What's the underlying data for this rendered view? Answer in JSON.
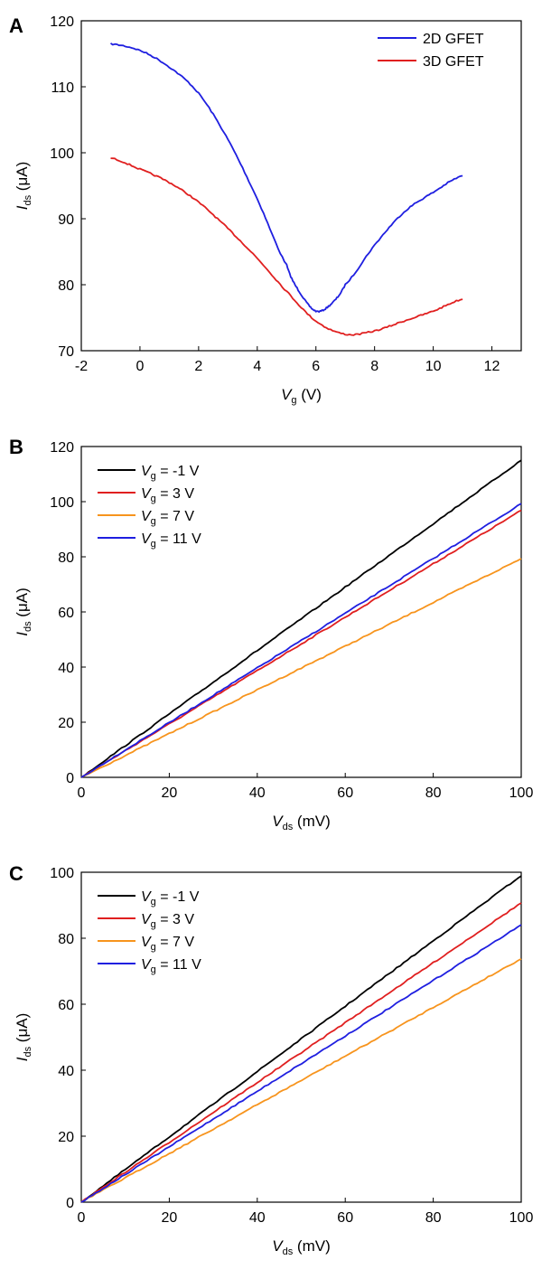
{
  "chart_data": [
    {
      "panel": "A",
      "type": "line",
      "xlabel": {
        "main": "V",
        "sub": "g",
        "rest": " (V)"
      },
      "ylabel": {
        "main": "I",
        "sub": "ds",
        "rest": " (μA)"
      },
      "xlim": [
        -2,
        13
      ],
      "ylim": [
        70,
        120
      ],
      "xticks": [
        -2,
        0,
        2,
        4,
        6,
        8,
        10,
        12
      ],
      "yticks": [
        70,
        80,
        90,
        100,
        110,
        120
      ],
      "legend_position": "top-right",
      "series": [
        {
          "name": "2D GFET",
          "color": "#1f1fe0",
          "x": [
            -1,
            0,
            1,
            2,
            3,
            4,
            5,
            5.5,
            6,
            6.5,
            7,
            8,
            9,
            10,
            11
          ],
          "y": [
            116.5,
            115.5,
            113,
            109,
            102,
            93,
            83,
            78.5,
            76,
            77,
            80,
            86,
            91,
            94,
            96.5
          ]
        },
        {
          "name": "3D GFET",
          "color": "#e01f1f",
          "x": [
            -1,
            0,
            1,
            2,
            3,
            4,
            5,
            6,
            7,
            8,
            9,
            10,
            11
          ],
          "y": [
            99.2,
            97.5,
            95.5,
            92.5,
            88.5,
            84,
            79,
            74.5,
            72.5,
            73,
            74.5,
            76,
            77.8
          ]
        }
      ]
    },
    {
      "panel": "B",
      "type": "line",
      "xlabel": {
        "main": "V",
        "sub": "ds",
        "rest": " (mV)"
      },
      "ylabel": {
        "main": "I",
        "sub": "ds",
        "rest": " (μA)"
      },
      "xlim": [
        0,
        100
      ],
      "ylim": [
        0,
        120
      ],
      "xticks": [
        0,
        20,
        40,
        60,
        80,
        100
      ],
      "yticks": [
        0,
        20,
        40,
        60,
        80,
        100,
        120
      ],
      "legend_position": "top-left",
      "series": [
        {
          "name": "V_g = -1 V",
          "label_main": "V",
          "label_sub": "g",
          "label_rest": " = -1 V",
          "color": "#000000",
          "x": [
            0,
            100
          ],
          "y": [
            0,
            115
          ]
        },
        {
          "name": "V_g = 3 V",
          "label_main": "V",
          "label_sub": "g",
          "label_rest": " = 3 V",
          "color": "#e01f1f",
          "x": [
            0,
            100
          ],
          "y": [
            0,
            96.8
          ]
        },
        {
          "name": "V_g = 7 V",
          "label_main": "V",
          "label_sub": "g",
          "label_rest": " = 7 V",
          "color": "#f7941d",
          "x": [
            0,
            100
          ],
          "y": [
            0,
            79.3
          ]
        },
        {
          "name": "V_g = 11 V",
          "label_main": "V",
          "label_sub": "g",
          "label_rest": " = 11 V",
          "color": "#1f1fe0",
          "x": [
            0,
            100
          ],
          "y": [
            0,
            99.2
          ]
        }
      ]
    },
    {
      "panel": "C",
      "type": "line",
      "xlabel": {
        "main": "V",
        "sub": "ds",
        "rest": " (mV)"
      },
      "ylabel": {
        "main": "I",
        "sub": "ds",
        "rest": " (μA)"
      },
      "xlim": [
        0,
        100
      ],
      "ylim": [
        0,
        100
      ],
      "xticks": [
        0,
        20,
        40,
        60,
        80,
        100
      ],
      "yticks": [
        0,
        20,
        40,
        60,
        80,
        100
      ],
      "legend_position": "top-left",
      "series": [
        {
          "name": "V_g = -1 V",
          "label_main": "V",
          "label_sub": "g",
          "label_rest": " = -1 V",
          "color": "#000000",
          "x": [
            0,
            100
          ],
          "y": [
            0,
            99
          ]
        },
        {
          "name": "V_g = 3 V",
          "label_main": "V",
          "label_sub": "g",
          "label_rest": " = 3 V",
          "color": "#e01f1f",
          "x": [
            0,
            100
          ],
          "y": [
            0,
            90.7
          ]
        },
        {
          "name": "V_g = 7 V",
          "label_main": "V",
          "label_sub": "g",
          "label_rest": " = 7 V",
          "color": "#f7941d",
          "x": [
            0,
            100
          ],
          "y": [
            0,
            73.8
          ]
        },
        {
          "name": "V_g = 11 V",
          "label_main": "V",
          "label_sub": "g",
          "label_rest": " = 11 V",
          "color": "#1f1fe0",
          "x": [
            0,
            100
          ],
          "y": [
            0,
            84
          ]
        }
      ]
    }
  ]
}
